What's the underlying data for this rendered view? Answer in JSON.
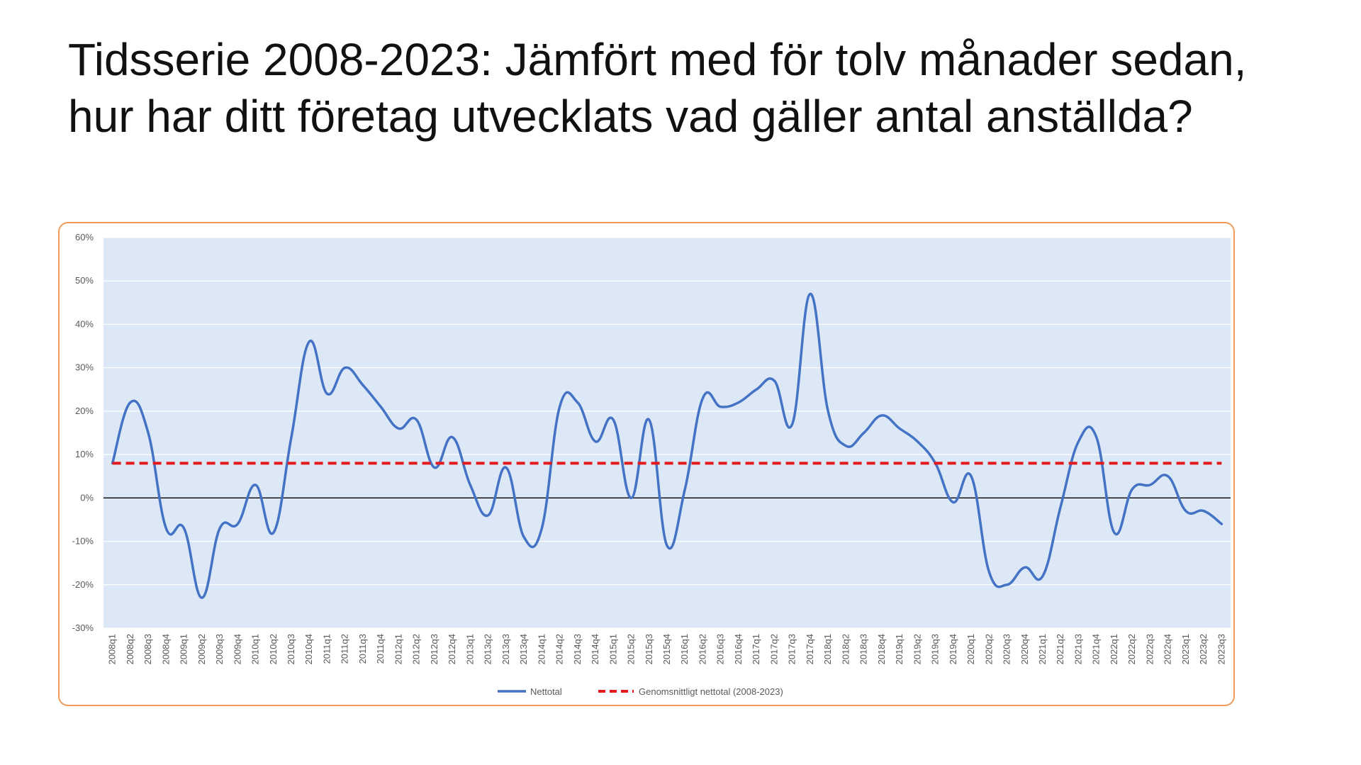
{
  "page": {
    "title": "Tidsserie 2008-2023: Jämfört med för tolv månader sedan, hur har ditt företag utvecklats vad gäller antal anställda?"
  },
  "colors": {
    "plot_background": "#dce8f5",
    "grid": "#ffffff",
    "zero_line": "#000000",
    "series_line": "#4472c4",
    "average_line": "#e3191c",
    "frame_border": "#ed9a5a"
  },
  "chart_data": {
    "type": "line",
    "title": "",
    "xlabel": "",
    "ylabel": "",
    "ylim": [
      -30,
      60
    ],
    "yticks": [
      -30,
      -20,
      -10,
      0,
      10,
      20,
      30,
      40,
      50,
      60
    ],
    "ytick_labels": [
      "-30%",
      "-20%",
      "-10%",
      "0%",
      "10%",
      "20%",
      "30%",
      "40%",
      "50%",
      "60%"
    ],
    "categories": [
      "2008q1",
      "2008q2",
      "2008q3",
      "2008q4",
      "2009q1",
      "2009q2",
      "2009q3",
      "2009q4",
      "2010q1",
      "2010q2",
      "2010q3",
      "2010q4",
      "2011q1",
      "2011q2",
      "2011q3",
      "2011q4",
      "2012q1",
      "2012q2",
      "2012q3",
      "2012q4",
      "2013q1",
      "2013q2",
      "2013q3",
      "2013q4",
      "2014q1",
      "2014q2",
      "2014q3",
      "2014q4",
      "2015q1",
      "2015q2",
      "2015q3",
      "2015q4",
      "2016q1",
      "2016q2",
      "2016q3",
      "2016q4",
      "2017q1",
      "2017q2",
      "2017q3",
      "2017q4",
      "2018q1",
      "2018q2",
      "2018q3",
      "2018q4",
      "2019q1",
      "2019q2",
      "2019q3",
      "2019q4",
      "2020q1",
      "2020q2",
      "2020q3",
      "2020q4",
      "2021q1",
      "2021q2",
      "2021q3",
      "2021q4",
      "2022q1",
      "2022q2",
      "2022q3",
      "2022q4",
      "2023q1",
      "2023q2",
      "2023q3"
    ],
    "series": [
      {
        "name": "Nettotal",
        "style": "solid",
        "values": [
          8,
          22,
          15,
          -7,
          -7,
          -23,
          -7,
          -6,
          3,
          -8,
          14,
          36,
          24,
          30,
          26,
          21,
          16,
          18,
          7,
          14,
          3,
          -4,
          7,
          -9,
          -7,
          21,
          22,
          13,
          18,
          0,
          18,
          -11,
          2,
          23,
          21,
          22,
          25,
          27,
          17,
          47,
          20,
          12,
          15,
          19,
          16,
          13,
          8,
          -1,
          5,
          -17,
          -20,
          -16,
          -18,
          -2,
          13,
          14,
          -8,
          2,
          3,
          5,
          -3,
          -3,
          -6
        ]
      },
      {
        "name": "Genomsnittligt nettotal (2008-2023)",
        "style": "dashed",
        "values": [
          8,
          8,
          8,
          8,
          8,
          8,
          8,
          8,
          8,
          8,
          8,
          8,
          8,
          8,
          8,
          8,
          8,
          8,
          8,
          8,
          8,
          8,
          8,
          8,
          8,
          8,
          8,
          8,
          8,
          8,
          8,
          8,
          8,
          8,
          8,
          8,
          8,
          8,
          8,
          8,
          8,
          8,
          8,
          8,
          8,
          8,
          8,
          8,
          8,
          8,
          8,
          8,
          8,
          8,
          8,
          8,
          8,
          8,
          8,
          8,
          8,
          8,
          8
        ]
      }
    ],
    "legend": {
      "position": "bottom-center",
      "entries": [
        "Nettotal",
        "Genomsnittligt nettotal (2008-2023)"
      ]
    },
    "grid": true
  }
}
